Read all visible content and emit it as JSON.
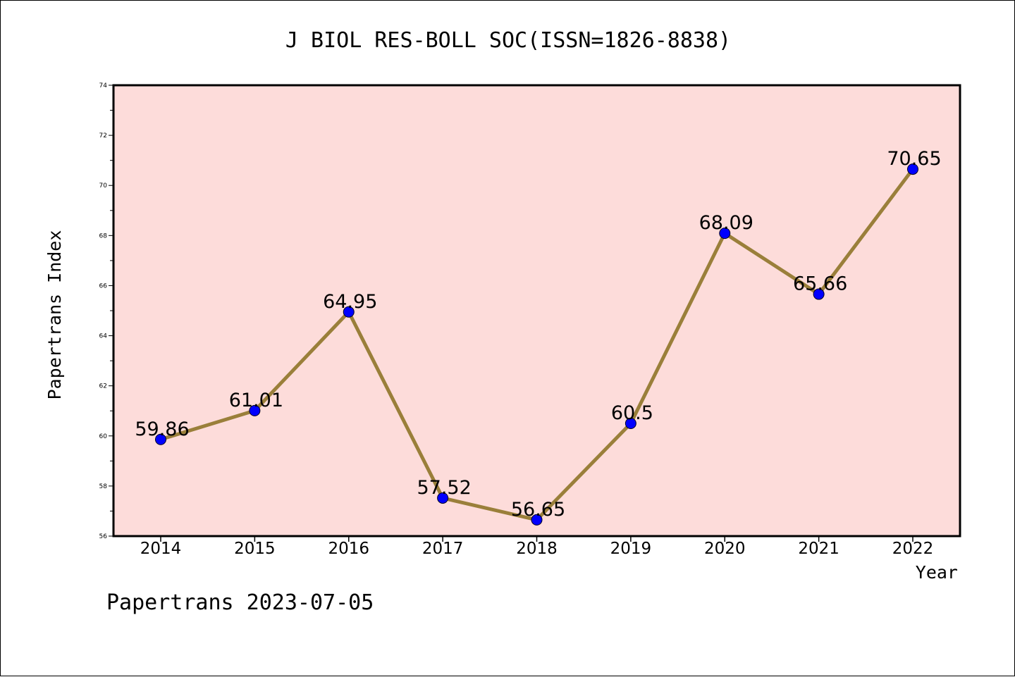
{
  "chart_data": {
    "type": "line",
    "title": "J BIOL RES-BOLL SOC(ISSN=1826-8838)",
    "xlabel": "Year",
    "ylabel": "Papertrans Index",
    "footer": "Papertrans 2023-07-05",
    "categories": [
      "2014",
      "2015",
      "2016",
      "2017",
      "2018",
      "2019",
      "2020",
      "2021",
      "2022"
    ],
    "values": [
      59.86,
      61.01,
      64.95,
      57.52,
      56.65,
      60.5,
      68.09,
      65.66,
      70.65
    ],
    "value_labels": [
      "59.86",
      "61.01",
      "64.95",
      "57.52",
      "56.65",
      "60.5",
      "68.09",
      "65.66",
      "70.65"
    ],
    "y_ticks": [
      "56",
      "58",
      "60",
      "62",
      "64",
      "66",
      "68",
      "70",
      "72",
      "74"
    ],
    "ylim": [
      56,
      74
    ],
    "grid": false,
    "colors": {
      "plot_background": "#fddcda",
      "line": "#9a7f3a",
      "marker": "#0000ff",
      "axis": "#000000"
    }
  }
}
